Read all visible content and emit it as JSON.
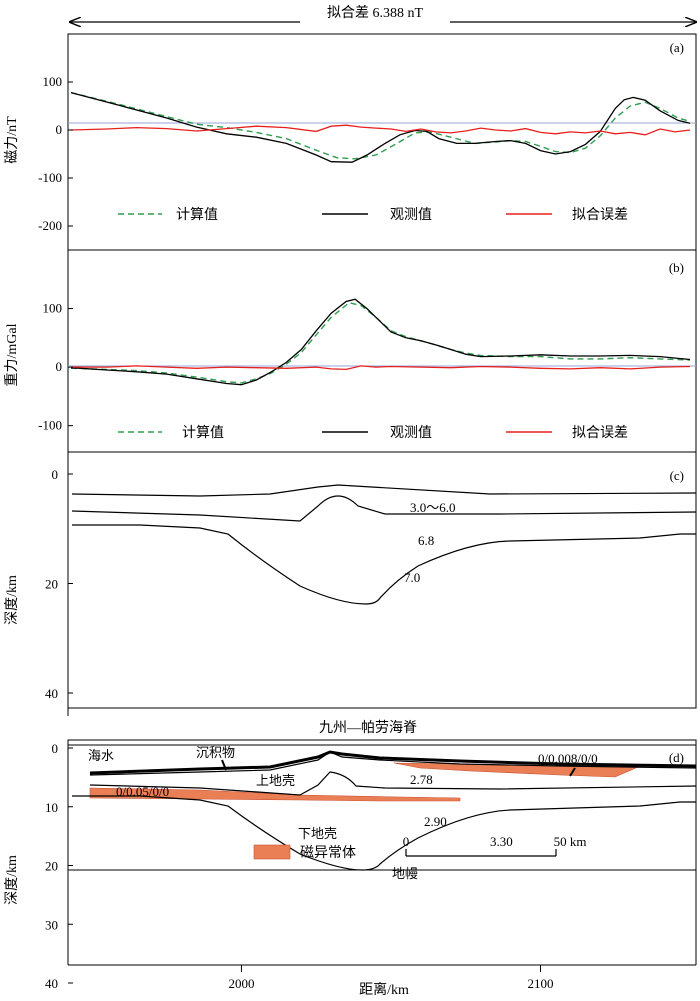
{
  "header": {
    "fit_diff": "拟合差 6.388 nT"
  },
  "chart_data": [
    {
      "panel": "(a)",
      "type": "line",
      "ylabel": "磁力/nT",
      "ylim": [
        -250,
        200
      ],
      "yticks": [
        -200,
        -100,
        0,
        100
      ],
      "xlim": [
        1942,
        2152
      ],
      "legend": {
        "calc": "计算值",
        "obs": "观测值",
        "err": "拟合误差"
      },
      "series": [
        {
          "name": "计算值",
          "color": "#2e9e4f",
          "dash": true,
          "x": [
            1943,
            1960,
            1975,
            1985,
            1995,
            2005,
            2015,
            2025,
            2032,
            2038,
            2045,
            2052,
            2058,
            2063,
            2070,
            2078,
            2085,
            2090,
            2095,
            2100,
            2105,
            2110,
            2115,
            2120,
            2125,
            2130,
            2135,
            2140,
            2146,
            2150
          ],
          "y": [
            78,
            52,
            28,
            12,
            5,
            -5,
            -18,
            -42,
            -58,
            -60,
            -52,
            -28,
            -6,
            -4,
            -15,
            -28,
            -25,
            -22,
            -24,
            -34,
            -45,
            -47,
            -38,
            -12,
            25,
            50,
            58,
            45,
            25,
            18
          ]
        },
        {
          "name": "观测值",
          "color": "#000000",
          "dash": false,
          "x": [
            1943,
            1960,
            1975,
            1985,
            1995,
            2005,
            2015,
            2025,
            2030,
            2037,
            2042,
            2048,
            2053,
            2058,
            2062,
            2066,
            2072,
            2078,
            2085,
            2090,
            2095,
            2100,
            2105,
            2110,
            2115,
            2120,
            2125,
            2128,
            2131,
            2135,
            2140,
            2146,
            2150
          ],
          "y": [
            78,
            50,
            25,
            6,
            -8,
            -15,
            -28,
            -52,
            -66,
            -67,
            -52,
            -28,
            -10,
            -1,
            -3,
            -18,
            -28,
            -28,
            -24,
            -22,
            -28,
            -43,
            -50,
            -45,
            -30,
            -3,
            45,
            63,
            68,
            62,
            40,
            20,
            14
          ]
        },
        {
          "name": "拟合误差",
          "color": "#e8201c",
          "dash": false,
          "x": [
            1943,
            1955,
            1965,
            1975,
            1985,
            1995,
            2005,
            2015,
            2025,
            2030,
            2035,
            2040,
            2045,
            2050,
            2055,
            2060,
            2065,
            2070,
            2075,
            2080,
            2085,
            2090,
            2095,
            2100,
            2105,
            2110,
            2115,
            2120,
            2125,
            2130,
            2135,
            2140,
            2145,
            2150
          ],
          "y": [
            0,
            2,
            5,
            3,
            -2,
            3,
            8,
            5,
            -3,
            8,
            10,
            6,
            4,
            2,
            -3,
            2,
            -4,
            -6,
            -2,
            4,
            0,
            -2,
            3,
            -5,
            -8,
            -4,
            -6,
            -2,
            -8,
            -5,
            -10,
            2,
            -4,
            0
          ]
        }
      ]
    },
    {
      "panel": "(b)",
      "type": "line",
      "ylabel": "重力/mGal",
      "ylim": [
        -145,
        200
      ],
      "yticks": [
        -100,
        0,
        100
      ],
      "xlim": [
        1942,
        2152
      ],
      "legend": {
        "calc": "计算值",
        "obs": "观测值",
        "err": "拟合误差"
      },
      "series": [
        {
          "name": "计算值",
          "color": "#2e9e4f",
          "dash": true,
          "x": [
            1943,
            1955,
            1965,
            1975,
            1985,
            1995,
            2000,
            2005,
            2010,
            2015,
            2020,
            2025,
            2030,
            2036,
            2040,
            2045,
            2050,
            2055,
            2060,
            2065,
            2070,
            2075,
            2080,
            2090,
            2100,
            2110,
            2120,
            2130,
            2140,
            2150
          ],
          "y": [
            -2,
            -4,
            -6,
            -10,
            -17,
            -25,
            -27,
            -20,
            -10,
            5,
            25,
            55,
            85,
            110,
            105,
            85,
            62,
            52,
            45,
            38,
            30,
            24,
            20,
            18,
            18,
            14,
            14,
            16,
            14,
            12
          ]
        },
        {
          "name": "观测值",
          "color": "#000000",
          "dash": false,
          "x": [
            1943,
            1955,
            1965,
            1975,
            1985,
            1995,
            2000,
            2005,
            2010,
            2015,
            2020,
            2025,
            2030,
            2035,
            2038,
            2042,
            2046,
            2050,
            2055,
            2060,
            2065,
            2070,
            2075,
            2080,
            2090,
            2100,
            2110,
            2120,
            2130,
            2140,
            2150
          ],
          "y": [
            -1,
            -5,
            -8,
            -12,
            -20,
            -28,
            -30,
            -22,
            -8,
            8,
            30,
            62,
            92,
            112,
            116,
            100,
            80,
            60,
            50,
            45,
            38,
            30,
            22,
            18,
            19,
            21,
            19,
            19,
            20,
            18,
            13
          ]
        },
        {
          "name": "拟合误差",
          "color": "#e8201c",
          "dash": false,
          "x": [
            1943,
            1955,
            1965,
            1975,
            1985,
            1995,
            2005,
            2015,
            2025,
            2030,
            2035,
            2040,
            2045,
            2050,
            2060,
            2070,
            2080,
            2090,
            2100,
            2110,
            2120,
            2130,
            2140,
            2150
          ],
          "y": [
            0,
            0,
            2,
            0,
            -2,
            0,
            -1,
            -2,
            0,
            -3,
            -4,
            2,
            0,
            1,
            0,
            -1,
            1,
            0,
            -2,
            -3,
            -1,
            -3,
            0,
            1
          ]
        }
      ]
    },
    {
      "panel": "(c)",
      "type": "line",
      "ylabel": "深度/km",
      "yticks": [
        0,
        20,
        40
      ],
      "labels": [
        "3.0～6.0",
        "6.8",
        "7.0"
      ]
    },
    {
      "panel": "(d)",
      "type": "line",
      "title": "九州—帕劳海脊",
      "ylabel": "深度/km",
      "xlabel": "距离/km",
      "yticks": [
        0,
        10,
        20,
        30,
        40
      ],
      "xticks": [
        2000,
        2100
      ],
      "labels": {
        "seawater": "海水",
        "sediment": "沉积物",
        "upper_crust": "上地壳",
        "lower_crust": "下地壳",
        "mantle": "地幔",
        "body_right": "0/0.008/0/0",
        "body_left": "0/0.05/0/0",
        "rho1": "2.78",
        "rho2": "2.90",
        "rho3": "3.30"
      },
      "legend": {
        "mag_body": "磁异常体"
      },
      "scalebar": {
        "start": "0",
        "end": "50 km"
      }
    }
  ],
  "colors": {
    "calc": "#2e9e4f",
    "obs": "#000000",
    "err": "#e8201c",
    "body": "#ea7f56",
    "zero": "#9aa6d8"
  }
}
